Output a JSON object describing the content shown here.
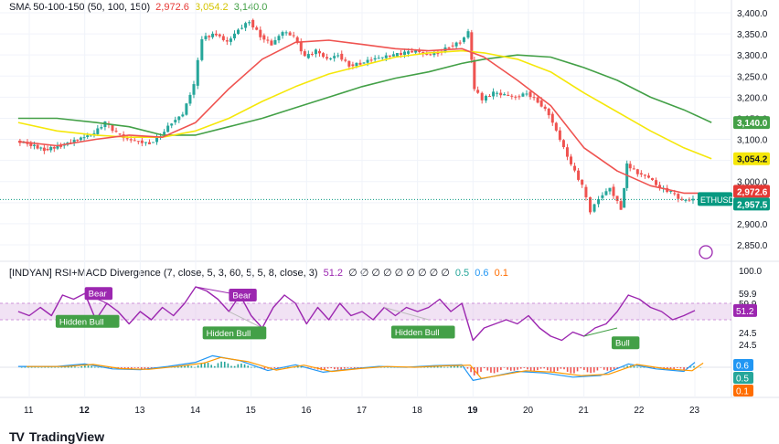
{
  "main_legend": {
    "label": "SMA 50-100-150 (50, 100, 150)",
    "v1": "2,972.6",
    "v2": "3,054.2",
    "v3": "3,140.0",
    "c1": "#e53935",
    "c2": "#f5e70a",
    "c3": "#43a047"
  },
  "sub_legend": {
    "label": "[INDYAN] RSI+MACD Divergence (7, close, 5, 3, 60, 5, 5, 8, close, 3)",
    "v1": "51.2",
    "zeros": "∅ ∅ ∅ ∅ ∅ ∅ ∅ ∅ ∅",
    "v2": "0.5",
    "v3": "0.6",
    "v4": "0.1"
  },
  "price_axis": [
    "3,400.0",
    "3,350.0",
    "3,300.0",
    "3,250.0",
    "3,200.0",
    "3,150.0",
    "3,100.0",
    "3,050.0",
    "3,000.0",
    "2,950.0",
    "2,900.0",
    "2,850.0"
  ],
  "price_tags": [
    {
      "text": "3,140.0",
      "bg": "#43a047",
      "fg": "#ffffff",
      "value": 3140
    },
    {
      "text": "3,054.2",
      "bg": "#f5e70a",
      "fg": "#131722",
      "value": 3054.2
    },
    {
      "text": "2,972.6",
      "bg": "#e53935",
      "fg": "#ffffff",
      "value": 2972.6
    },
    {
      "text": "2,957.5",
      "bg": "#089981",
      "fg": "#ffffff",
      "value": 2957.5
    }
  ],
  "symbol_label": "ETHUSD",
  "rsi_axis": [
    "100.0",
    "59.9",
    "59.9",
    "24.5",
    "24.5"
  ],
  "rsi_tags": [
    {
      "text": "51.2",
      "bg": "#9c27b0",
      "fg": "#ffffff"
    }
  ],
  "macd_tags": [
    {
      "text": "0.6",
      "bg": "#2196f3",
      "fg": "#ffffff"
    },
    {
      "text": "0.5",
      "bg": "#26a69a",
      "fg": "#ffffff"
    },
    {
      "text": "0.1",
      "bg": "#ff6d00",
      "fg": "#ffffff"
    }
  ],
  "x_axis": [
    {
      "label": "11",
      "bold": false
    },
    {
      "label": "12",
      "bold": true
    },
    {
      "label": "13",
      "bold": false
    },
    {
      "label": "14",
      "bold": false
    },
    {
      "label": "15",
      "bold": false
    },
    {
      "label": "16",
      "bold": false
    },
    {
      "label": "17",
      "bold": false
    },
    {
      "label": "18",
      "bold": false
    },
    {
      "label": "19",
      "bold": true
    },
    {
      "label": "20",
      "bold": false
    },
    {
      "label": "21",
      "bold": false
    },
    {
      "label": "22",
      "bold": false
    },
    {
      "label": "23",
      "bold": false
    }
  ],
  "signals": [
    {
      "text": "Bear",
      "color": "#9c27b0",
      "day": 12.25,
      "rsi": 72
    },
    {
      "text": "Bear",
      "color": "#9c27b0",
      "day": 14.85,
      "rsi": 70
    },
    {
      "text": "Hidden Bull",
      "color": "#43a047",
      "day": 12.05,
      "rsi": 38
    },
    {
      "text": "Hidden Bull",
      "color": "#43a047",
      "day": 14.7,
      "rsi": 24
    },
    {
      "text": "Hidden Bull",
      "color": "#43a047",
      "day": 18.1,
      "rsi": 25
    },
    {
      "text": "Bull",
      "color": "#43a047",
      "day": 21.75,
      "rsi": 12
    }
  ],
  "brand": "TradingView",
  "chart_data": {
    "type": "candlestick",
    "symbol": "ETHUSD",
    "x_range": [
      10.8,
      23.4
    ],
    "ylim": [
      2820,
      3420
    ],
    "price": [
      [
        10.8,
        3095
      ],
      [
        11.0,
        3090
      ],
      [
        11.3,
        3075
      ],
      [
        11.6,
        3085
      ],
      [
        11.9,
        3100
      ],
      [
        12.2,
        3115
      ],
      [
        12.4,
        3140
      ],
      [
        12.6,
        3115
      ],
      [
        12.8,
        3100
      ],
      [
        13.0,
        3095
      ],
      [
        13.2,
        3090
      ],
      [
        13.4,
        3110
      ],
      [
        13.6,
        3140
      ],
      [
        13.8,
        3160
      ],
      [
        14.0,
        3230
      ],
      [
        14.15,
        3340
      ],
      [
        14.4,
        3350
      ],
      [
        14.6,
        3330
      ],
      [
        14.8,
        3360
      ],
      [
        15.0,
        3380
      ],
      [
        15.2,
        3345
      ],
      [
        15.4,
        3325
      ],
      [
        15.6,
        3355
      ],
      [
        15.8,
        3345
      ],
      [
        16.0,
        3295
      ],
      [
        16.2,
        3310
      ],
      [
        16.4,
        3290
      ],
      [
        16.6,
        3300
      ],
      [
        16.8,
        3275
      ],
      [
        17.0,
        3280
      ],
      [
        17.2,
        3290
      ],
      [
        17.4,
        3295
      ],
      [
        17.6,
        3300
      ],
      [
        17.8,
        3305
      ],
      [
        18.0,
        3310
      ],
      [
        18.2,
        3300
      ],
      [
        18.4,
        3305
      ],
      [
        18.6,
        3320
      ],
      [
        18.8,
        3330
      ],
      [
        18.95,
        3355
      ],
      [
        19.05,
        3220
      ],
      [
        19.2,
        3195
      ],
      [
        19.4,
        3210
      ],
      [
        19.6,
        3205
      ],
      [
        19.8,
        3200
      ],
      [
        20.0,
        3210
      ],
      [
        20.2,
        3190
      ],
      [
        20.4,
        3160
      ],
      [
        20.6,
        3100
      ],
      [
        20.8,
        3040
      ],
      [
        21.0,
        2990
      ],
      [
        21.15,
        2930
      ],
      [
        21.3,
        2960
      ],
      [
        21.5,
        2985
      ],
      [
        21.7,
        2935
      ],
      [
        21.8,
        3040
      ],
      [
        22.0,
        3020
      ],
      [
        22.2,
        3010
      ],
      [
        22.4,
        2985
      ],
      [
        22.6,
        2975
      ],
      [
        22.8,
        2955
      ],
      [
        23.0,
        2957.5
      ]
    ],
    "sma50": [
      [
        10.8,
        3095
      ],
      [
        11.5,
        3085
      ],
      [
        12.2,
        3100
      ],
      [
        12.8,
        3110
      ],
      [
        13.4,
        3105
      ],
      [
        14.0,
        3140
      ],
      [
        14.6,
        3220
      ],
      [
        15.2,
        3290
      ],
      [
        15.8,
        3330
      ],
      [
        16.4,
        3335
      ],
      [
        17.0,
        3325
      ],
      [
        17.6,
        3315
      ],
      [
        18.2,
        3310
      ],
      [
        18.8,
        3315
      ],
      [
        19.2,
        3295
      ],
      [
        19.8,
        3240
      ],
      [
        20.4,
        3180
      ],
      [
        21.0,
        3080
      ],
      [
        21.6,
        3025
      ],
      [
        22.2,
        2990
      ],
      [
        22.8,
        2972.6
      ],
      [
        23.3,
        2972.6
      ]
    ],
    "sma100": [
      [
        10.8,
        3140
      ],
      [
        11.5,
        3120
      ],
      [
        12.2,
        3110
      ],
      [
        12.8,
        3105
      ],
      [
        13.4,
        3105
      ],
      [
        14.0,
        3120
      ],
      [
        14.6,
        3150
      ],
      [
        15.2,
        3190
      ],
      [
        15.8,
        3225
      ],
      [
        16.4,
        3255
      ],
      [
        17.0,
        3275
      ],
      [
        17.6,
        3295
      ],
      [
        18.2,
        3305
      ],
      [
        18.8,
        3310
      ],
      [
        19.2,
        3305
      ],
      [
        19.8,
        3290
      ],
      [
        20.4,
        3260
      ],
      [
        21.0,
        3210
      ],
      [
        21.6,
        3165
      ],
      [
        22.2,
        3120
      ],
      [
        22.8,
        3080
      ],
      [
        23.3,
        3054.2
      ]
    ],
    "sma150": [
      [
        10.8,
        3150
      ],
      [
        11.5,
        3150
      ],
      [
        12.2,
        3140
      ],
      [
        12.8,
        3130
      ],
      [
        13.4,
        3110
      ],
      [
        14.0,
        3110
      ],
      [
        14.6,
        3130
      ],
      [
        15.2,
        3150
      ],
      [
        15.8,
        3175
      ],
      [
        16.4,
        3200
      ],
      [
        17.0,
        3225
      ],
      [
        17.6,
        3245
      ],
      [
        18.2,
        3260
      ],
      [
        18.8,
        3280
      ],
      [
        19.2,
        3290
      ],
      [
        19.8,
        3300
      ],
      [
        20.4,
        3295
      ],
      [
        21.0,
        3270
      ],
      [
        21.6,
        3240
      ],
      [
        22.2,
        3200
      ],
      [
        22.8,
        3170
      ],
      [
        23.3,
        3140
      ]
    ],
    "rsi": [
      [
        10.8,
        50
      ],
      [
        11.0,
        45
      ],
      [
        11.2,
        55
      ],
      [
        11.4,
        45
      ],
      [
        11.6,
        70
      ],
      [
        11.8,
        65
      ],
      [
        12.0,
        72
      ],
      [
        12.2,
        40
      ],
      [
        12.4,
        60
      ],
      [
        12.6,
        50
      ],
      [
        12.8,
        35
      ],
      [
        13.0,
        50
      ],
      [
        13.2,
        40
      ],
      [
        13.4,
        55
      ],
      [
        13.6,
        45
      ],
      [
        13.8,
        60
      ],
      [
        14.0,
        80
      ],
      [
        14.2,
        75
      ],
      [
        14.4,
        65
      ],
      [
        14.6,
        50
      ],
      [
        14.8,
        70
      ],
      [
        15.0,
        45
      ],
      [
        15.2,
        30
      ],
      [
        15.4,
        55
      ],
      [
        15.6,
        70
      ],
      [
        15.8,
        60
      ],
      [
        16.0,
        35
      ],
      [
        16.2,
        55
      ],
      [
        16.4,
        40
      ],
      [
        16.6,
        60
      ],
      [
        16.8,
        45
      ],
      [
        17.0,
        50
      ],
      [
        17.2,
        40
      ],
      [
        17.4,
        55
      ],
      [
        17.6,
        45
      ],
      [
        17.8,
        55
      ],
      [
        18.0,
        50
      ],
      [
        18.2,
        55
      ],
      [
        18.4,
        65
      ],
      [
        18.6,
        50
      ],
      [
        18.8,
        60
      ],
      [
        19.0,
        15
      ],
      [
        19.2,
        30
      ],
      [
        19.4,
        35
      ],
      [
        19.6,
        40
      ],
      [
        19.8,
        35
      ],
      [
        20.0,
        45
      ],
      [
        20.2,
        30
      ],
      [
        20.4,
        20
      ],
      [
        20.6,
        15
      ],
      [
        20.8,
        25
      ],
      [
        21.0,
        20
      ],
      [
        21.2,
        30
      ],
      [
        21.4,
        35
      ],
      [
        21.6,
        50
      ],
      [
        21.8,
        70
      ],
      [
        22.0,
        65
      ],
      [
        22.2,
        55
      ],
      [
        22.4,
        50
      ],
      [
        22.6,
        40
      ],
      [
        22.8,
        45
      ],
      [
        23.0,
        51.2
      ]
    ],
    "macd": [
      [
        10.8,
        0.1
      ],
      [
        11.5,
        0.1
      ],
      [
        12.0,
        0.4
      ],
      [
        12.5,
        -0.2
      ],
      [
        13.0,
        -0.3
      ],
      [
        13.5,
        0.1
      ],
      [
        14.0,
        0.6
      ],
      [
        14.3,
        1.4
      ],
      [
        14.8,
        0.8
      ],
      [
        15.3,
        -0.4
      ],
      [
        15.8,
        0.3
      ],
      [
        16.3,
        -0.6
      ],
      [
        16.8,
        -0.2
      ],
      [
        17.3,
        0.1
      ],
      [
        17.8,
        0.0
      ],
      [
        18.3,
        0.2
      ],
      [
        18.8,
        0.3
      ],
      [
        19.0,
        -1.6
      ],
      [
        19.3,
        -1.2
      ],
      [
        19.8,
        -0.5
      ],
      [
        20.3,
        -0.7
      ],
      [
        20.8,
        -1.2
      ],
      [
        21.3,
        -1.0
      ],
      [
        21.8,
        0.4
      ],
      [
        22.3,
        -0.2
      ],
      [
        22.8,
        -0.5
      ],
      [
        23.0,
        0.6
      ]
    ]
  }
}
